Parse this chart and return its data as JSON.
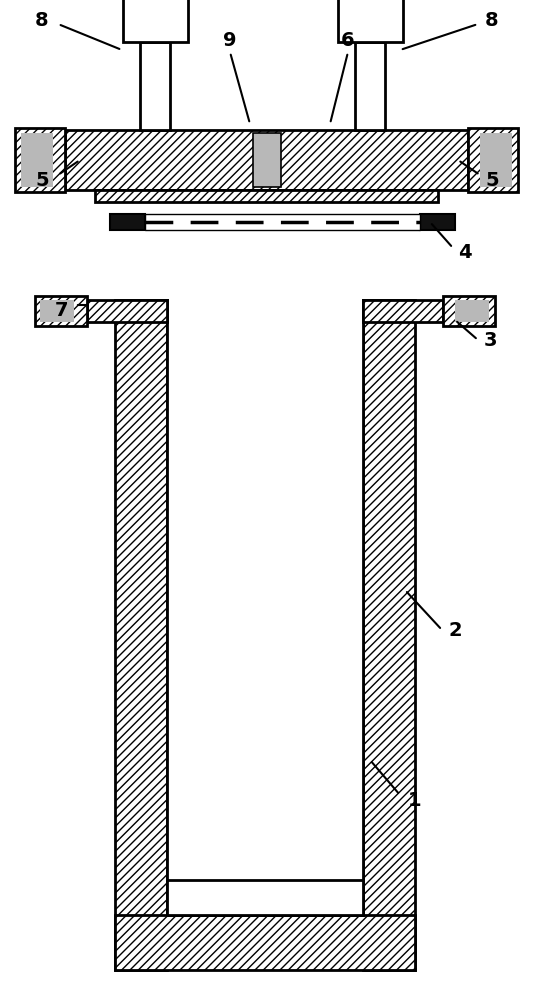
{
  "bg_color": "#ffffff",
  "line_color": "#000000",
  "gray_fill": "#b8b8b8",
  "white_fill": "#ffffff",
  "dark_fill": "#111111",
  "label_color": "#000000",
  "fig_width": 5.33,
  "fig_height": 10.0
}
